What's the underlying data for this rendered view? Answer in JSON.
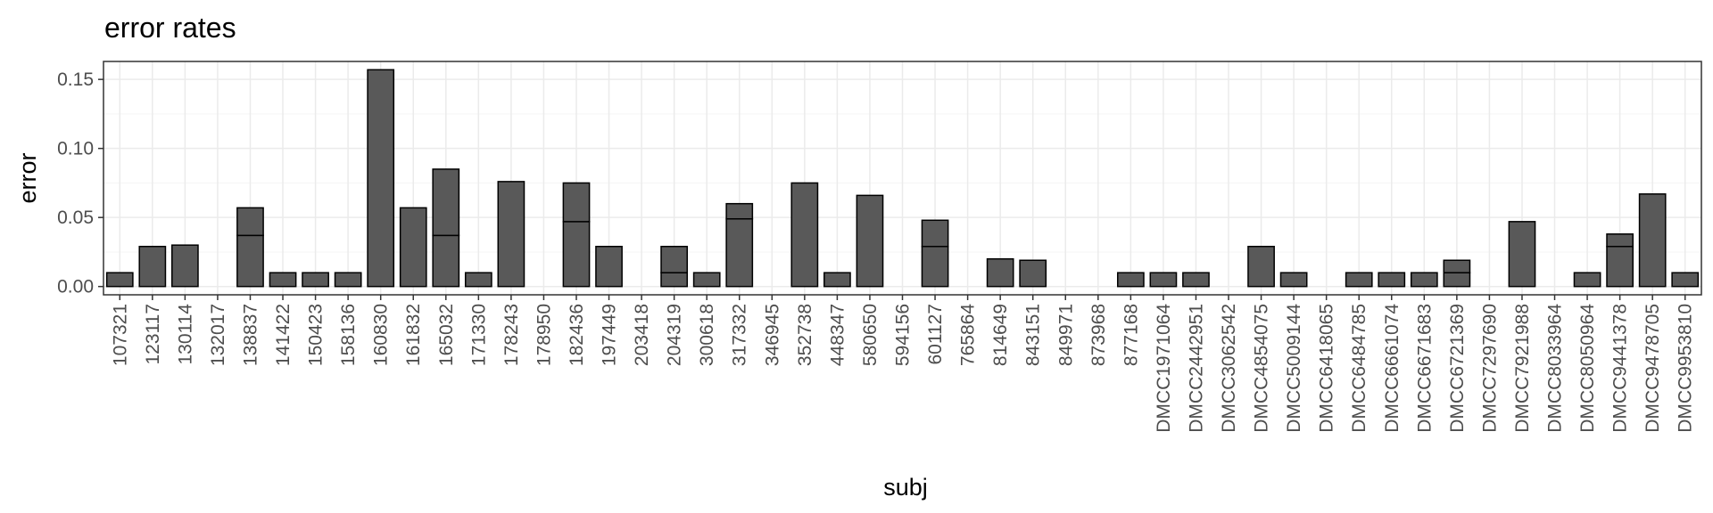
{
  "chart_data": {
    "type": "bar",
    "title": "error rates",
    "xlabel": "subj",
    "ylabel": "error",
    "ylim": [
      -0.006,
      0.163
    ],
    "yticks": [
      0.0,
      0.05,
      0.1,
      0.15
    ],
    "ytick_labels": [
      "0.00",
      "0.05",
      "0.10",
      "0.15"
    ],
    "grid": true,
    "stacked": true,
    "bar_fill": "#595959",
    "bar_stroke": "#000000",
    "grid_major_color": "#ebebeb",
    "grid_minor_color": "#f5f5f5",
    "categories": [
      "107321",
      "123117",
      "130114",
      "132017",
      "138837",
      "141422",
      "150423",
      "158136",
      "160830",
      "161832",
      "165032",
      "171330",
      "178243",
      "178950",
      "182436",
      "197449",
      "203418",
      "204319",
      "300618",
      "317332",
      "346945",
      "352738",
      "448347",
      "580650",
      "594156",
      "601127",
      "765864",
      "814649",
      "843151",
      "849971",
      "873968",
      "877168",
      "DMCC1971064",
      "DMCC2442951",
      "DMCC3062542",
      "DMCC4854075",
      "DMCC5009144",
      "DMCC6418065",
      "DMCC6484785",
      "DMCC6661074",
      "DMCC6671683",
      "DMCC6721369",
      "DMCC7297690",
      "DMCC7921988",
      "DMCC8033964",
      "DMCC8050964",
      "DMCC9441378",
      "DMCC9478705",
      "DMCC9953810"
    ],
    "segments": [
      [
        0.01
      ],
      [
        0.029
      ],
      [
        0.03
      ],
      [
        0.0
      ],
      [
        0.037,
        0.02
      ],
      [
        0.01
      ],
      [
        0.01
      ],
      [
        0.01
      ],
      [
        0.157
      ],
      [
        0.057
      ],
      [
        0.037,
        0.048
      ],
      [
        0.01
      ],
      [
        0.076
      ],
      [
        0.0
      ],
      [
        0.047,
        0.028
      ],
      [
        0.029
      ],
      [
        0.0
      ],
      [
        0.01,
        0.019
      ],
      [
        0.01
      ],
      [
        0.049,
        0.011
      ],
      [
        0.0
      ],
      [
        0.075
      ],
      [
        0.01
      ],
      [
        0.066
      ],
      [
        0.0
      ],
      [
        0.029,
        0.019
      ],
      [
        0.0
      ],
      [
        0.02
      ],
      [
        0.019
      ],
      [
        0.0
      ],
      [
        0.0
      ],
      [
        0.01
      ],
      [
        0.01
      ],
      [
        0.01
      ],
      [
        0.0
      ],
      [
        0.029
      ],
      [
        0.01
      ],
      [
        0.0
      ],
      [
        0.01
      ],
      [
        0.01
      ],
      [
        0.01
      ],
      [
        0.01,
        0.009
      ],
      [
        0.0
      ],
      [
        0.047
      ],
      [
        0.0
      ],
      [
        0.01
      ],
      [
        0.029,
        0.009
      ],
      [
        0.067
      ],
      [
        0.01
      ]
    ],
    "values": [
      0.01,
      0.029,
      0.03,
      0.0,
      0.057,
      0.01,
      0.01,
      0.01,
      0.157,
      0.057,
      0.085,
      0.01,
      0.076,
      0.0,
      0.075,
      0.029,
      0.0,
      0.029,
      0.01,
      0.06,
      0.0,
      0.075,
      0.01,
      0.066,
      0.0,
      0.048,
      0.0,
      0.02,
      0.019,
      0.0,
      0.0,
      0.01,
      0.01,
      0.01,
      0.0,
      0.029,
      0.01,
      0.0,
      0.01,
      0.01,
      0.01,
      0.019,
      0.0,
      0.047,
      0.0,
      0.01,
      0.038,
      0.067,
      0.01
    ]
  }
}
